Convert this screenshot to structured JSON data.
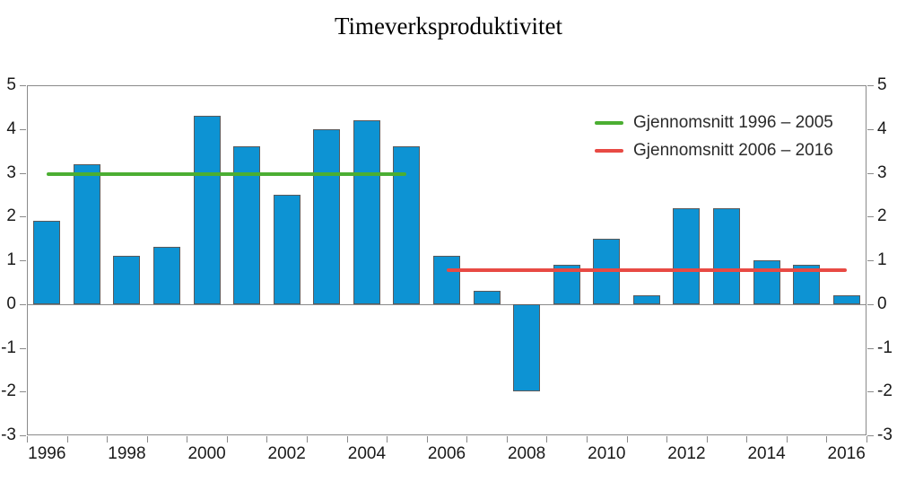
{
  "title": "Timeverksproduktivitet",
  "legend": [
    {
      "label": "Gjennomsnitt 1996 – 2005",
      "color": "#4bae32"
    },
    {
      "label": "Gjennomsnitt 2006 – 2016",
      "color": "#e84a44"
    }
  ],
  "colors": {
    "bar_fill": "#0d93d3",
    "bar_border": "#5a5a5b",
    "axis": "#8a8a8a",
    "text": "#1a1a1a"
  },
  "chart_data": {
    "type": "bar",
    "title": "Timeverksproduktivitet",
    "categories": [
      1996,
      1997,
      1998,
      1999,
      2000,
      2001,
      2002,
      2003,
      2004,
      2005,
      2006,
      2007,
      2008,
      2009,
      2010,
      2011,
      2012,
      2013,
      2014,
      2015,
      2016
    ],
    "values": [
      1.9,
      3.2,
      1.1,
      1.3,
      4.3,
      3.6,
      2.5,
      4.0,
      4.2,
      3.6,
      1.1,
      0.3,
      -2.0,
      0.9,
      1.5,
      0.2,
      2.2,
      2.2,
      1.0,
      0.9,
      0.2
    ],
    "ylim": [
      -3,
      5
    ],
    "yticks": [
      5,
      4,
      3,
      2,
      1,
      0,
      -1,
      -2,
      -3
    ],
    "ytick_sides": "both",
    "xtick_labels": [
      "1996",
      "1998",
      "2000",
      "2002",
      "2004",
      "2006",
      "2008",
      "2010",
      "2012",
      "2014",
      "2016"
    ],
    "grid": false,
    "legend_position": "upper right inside",
    "reference_lines": [
      {
        "name": "Gjennomsnitt 1996 – 2005",
        "value": 2.97,
        "from_year": 1996,
        "to_year": 2005,
        "color": "#4bae32"
      },
      {
        "name": "Gjennomsnitt 2006 – 2016",
        "value": 0.77,
        "from_year": 2006,
        "to_year": 2016,
        "color": "#e84a44"
      }
    ]
  }
}
